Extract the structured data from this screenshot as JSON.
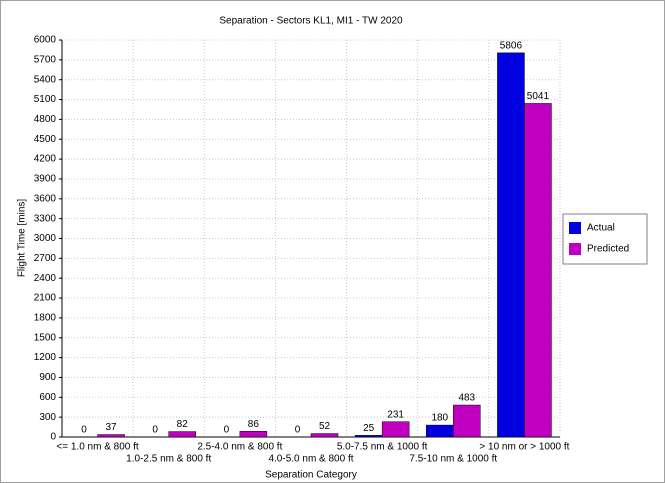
{
  "chart_data": {
    "type": "bar",
    "title": "Separation - Sectors KL1, MI1 - TW 2020",
    "x_label": "Separation Category",
    "y_label": "Flight Time [mins]",
    "categories": [
      "<= 1.0 nm & 800 ft",
      "1.0-2.5 nm & 800 ft",
      "2.5-4.0 nm & 800 ft",
      "4.0-5.0 nm & 800 ft",
      "5.0-7.5 nm & 1000 ft",
      "7.5-10 nm & 1000 ft",
      "> 10 nm or > 1000 ft"
    ],
    "series": [
      {
        "name": "Actual",
        "color": "#0000e0",
        "values": [
          0,
          0,
          0,
          0,
          25,
          180,
          5806
        ]
      },
      {
        "name": "Predicted",
        "color": "#c000c0",
        "values": [
          37,
          82,
          86,
          52,
          231,
          483,
          5041
        ]
      }
    ],
    "ylim": [
      0,
      6000
    ],
    "yticks": [
      0,
      300,
      600,
      900,
      1200,
      1500,
      1800,
      2100,
      2400,
      2700,
      3000,
      3300,
      3600,
      3900,
      4200,
      4500,
      4800,
      5100,
      5400,
      5700,
      6000
    ],
    "grid": true,
    "legend": "right"
  }
}
